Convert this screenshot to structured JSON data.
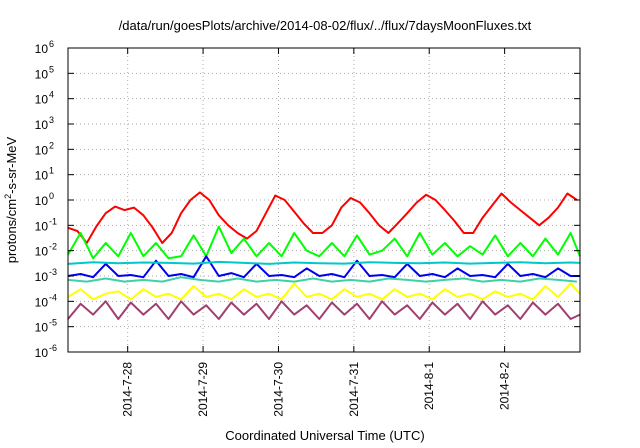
{
  "chart_data": {
    "type": "line",
    "title": "/data/run/goesPlots/archive/2014-08-02/flux/../flux/7daysMoonFluxes.txt",
    "xlabel": "Coordinated Universal Time (UTC)",
    "ylabel": {
      "base": "protons/cm",
      "sup": "2",
      "rest": "-s-sr-MeV"
    },
    "yscale": "log",
    "ylim": [
      1e-06,
      1000000.0
    ],
    "yticks": [
      {
        "exp": "-6"
      },
      {
        "exp": "-5"
      },
      {
        "exp": "-4"
      },
      {
        "exp": "-3"
      },
      {
        "exp": "-2"
      },
      {
        "exp": "-1"
      },
      {
        "exp": "0"
      },
      {
        "exp": "1"
      },
      {
        "exp": "2"
      },
      {
        "exp": "3"
      },
      {
        "exp": "4"
      },
      {
        "exp": "5"
      },
      {
        "exp": "6"
      }
    ],
    "ytick_base": "10",
    "xlim": [
      "2014-07-27T05:00",
      "2014-08-03T00:00"
    ],
    "xticks": [
      {
        "label": "2014-7-28",
        "x": "2014-07-28T00:00"
      },
      {
        "label": "2014-7-29",
        "x": "2014-07-29T00:00"
      },
      {
        "label": "2014-7-30",
        "x": "2014-07-30T00:00"
      },
      {
        "label": "2014-7-31",
        "x": "2014-07-31T00:00"
      },
      {
        "label": "2014-8-1",
        "x": "2014-08-01T00:00"
      },
      {
        "label": "2014-8-2",
        "x": "2014-08-02T00:00"
      }
    ],
    "grid": true,
    "series": [
      {
        "color": "#ff0000",
        "x": [
          "2014-07-27T05:00",
          "2014-07-27T08:00",
          "2014-07-27T11:00",
          "2014-07-27T14:00",
          "2014-07-27T17:00",
          "2014-07-27T20:00",
          "2014-07-27T23:00",
          "2014-07-28T02:00",
          "2014-07-28T05:00",
          "2014-07-28T08:00",
          "2014-07-28T11:00",
          "2014-07-28T14:00",
          "2014-07-28T17:00",
          "2014-07-28T20:00",
          "2014-07-28T23:00",
          "2014-07-29T02:00",
          "2014-07-29T05:00",
          "2014-07-29T08:00",
          "2014-07-29T11:00",
          "2014-07-29T14:00",
          "2014-07-29T17:00",
          "2014-07-29T20:00",
          "2014-07-29T23:00",
          "2014-07-30T02:00",
          "2014-07-30T05:00",
          "2014-07-30T08:00",
          "2014-07-30T11:00",
          "2014-07-30T14:00",
          "2014-07-30T17:00",
          "2014-07-30T20:00",
          "2014-07-30T23:00",
          "2014-07-31T02:00",
          "2014-07-31T05:00",
          "2014-07-31T08:00",
          "2014-07-31T11:00",
          "2014-07-31T14:00",
          "2014-07-31T17:00",
          "2014-07-31T20:00",
          "2014-07-31T23:00",
          "2014-08-01T02:00",
          "2014-08-01T05:00",
          "2014-08-01T08:00",
          "2014-08-01T11:00",
          "2014-08-01T14:00",
          "2014-08-01T17:00",
          "2014-08-01T20:00",
          "2014-08-01T23:00",
          "2014-08-02T02:00",
          "2014-08-02T05:00",
          "2014-08-02T08:00",
          "2014-08-02T11:00",
          "2014-08-02T14:00",
          "2014-08-02T17:00",
          "2014-08-02T20:00",
          "2014-08-02T23:00"
        ],
        "values": [
          0.08,
          0.06,
          0.02,
          0.09,
          0.3,
          0.55,
          0.4,
          0.5,
          0.25,
          0.08,
          0.02,
          0.05,
          0.3,
          1.0,
          2.0,
          1.0,
          0.25,
          0.1,
          0.05,
          0.03,
          0.06,
          0.3,
          1.5,
          1.0,
          0.35,
          0.12,
          0.05,
          0.05,
          0.1,
          0.5,
          1.2,
          0.8,
          0.3,
          0.1,
          0.05,
          0.12,
          0.3,
          0.8,
          1.6,
          1.0,
          0.4,
          0.15,
          0.05,
          0.05,
          0.2,
          0.6,
          1.8,
          0.8,
          0.4,
          0.2,
          0.1,
          0.2,
          0.5,
          1.8,
          1.0
        ]
      },
      {
        "color": "#00ff00",
        "x": [
          "2014-07-27T05:00",
          "2014-07-27T09:00",
          "2014-07-27T13:00",
          "2014-07-27T17:00",
          "2014-07-27T21:00",
          "2014-07-28T01:00",
          "2014-07-28T05:00",
          "2014-07-28T09:00",
          "2014-07-28T13:00",
          "2014-07-28T17:00",
          "2014-07-28T21:00",
          "2014-07-29T01:00",
          "2014-07-29T05:00",
          "2014-07-29T09:00",
          "2014-07-29T13:00",
          "2014-07-29T17:00",
          "2014-07-29T21:00",
          "2014-07-30T01:00",
          "2014-07-30T05:00",
          "2014-07-30T09:00",
          "2014-07-30T13:00",
          "2014-07-30T17:00",
          "2014-07-30T21:00",
          "2014-07-31T01:00",
          "2014-07-31T05:00",
          "2014-07-31T09:00",
          "2014-07-31T13:00",
          "2014-07-31T17:00",
          "2014-07-31T21:00",
          "2014-08-01T01:00",
          "2014-08-01T05:00",
          "2014-08-01T09:00",
          "2014-08-01T13:00",
          "2014-08-01T17:00",
          "2014-08-01T21:00",
          "2014-08-02T01:00",
          "2014-08-02T05:00",
          "2014-08-02T09:00",
          "2014-08-02T13:00",
          "2014-08-02T17:00",
          "2014-08-02T21:00",
          "2014-08-03T00:00"
        ],
        "values": [
          0.007,
          0.05,
          0.005,
          0.02,
          0.006,
          0.05,
          0.006,
          0.02,
          0.005,
          0.006,
          0.04,
          0.006,
          0.09,
          0.008,
          0.03,
          0.006,
          0.02,
          0.006,
          0.05,
          0.01,
          0.006,
          0.02,
          0.006,
          0.04,
          0.007,
          0.01,
          0.03,
          0.006,
          0.05,
          0.007,
          0.02,
          0.006,
          0.015,
          0.007,
          0.04,
          0.006,
          0.02,
          0.006,
          0.03,
          0.007,
          0.05,
          0.006
        ]
      },
      {
        "color": "#0000ee",
        "x": [
          "2014-07-27T05:00",
          "2014-07-27T09:00",
          "2014-07-27T13:00",
          "2014-07-27T17:00",
          "2014-07-27T21:00",
          "2014-07-28T01:00",
          "2014-07-28T05:00",
          "2014-07-28T09:00",
          "2014-07-28T13:00",
          "2014-07-28T17:00",
          "2014-07-28T21:00",
          "2014-07-29T01:00",
          "2014-07-29T05:00",
          "2014-07-29T09:00",
          "2014-07-29T13:00",
          "2014-07-29T17:00",
          "2014-07-29T21:00",
          "2014-07-30T01:00",
          "2014-07-30T05:00",
          "2014-07-30T09:00",
          "2014-07-30T13:00",
          "2014-07-30T17:00",
          "2014-07-30T21:00",
          "2014-07-31T01:00",
          "2014-07-31T05:00",
          "2014-07-31T09:00",
          "2014-07-31T13:00",
          "2014-07-31T17:00",
          "2014-07-31T21:00",
          "2014-08-01T01:00",
          "2014-08-01T05:00",
          "2014-08-01T09:00",
          "2014-08-01T13:00",
          "2014-08-01T17:00",
          "2014-08-01T21:00",
          "2014-08-02T01:00",
          "2014-08-02T05:00",
          "2014-08-02T09:00",
          "2014-08-02T13:00",
          "2014-08-02T17:00",
          "2014-08-02T21:00",
          "2014-08-03T00:00"
        ],
        "values": [
          0.001,
          0.0012,
          0.0009,
          0.003,
          0.001,
          0.0011,
          0.0009,
          0.004,
          0.001,
          0.0012,
          0.0009,
          0.006,
          0.001,
          0.0013,
          0.0009,
          0.003,
          0.001,
          0.0011,
          0.0009,
          0.002,
          0.001,
          0.0012,
          0.0009,
          0.004,
          0.001,
          0.0011,
          0.0009,
          0.003,
          0.001,
          0.0012,
          0.0009,
          0.002,
          0.001,
          0.0011,
          0.0009,
          0.003,
          0.001,
          0.0012,
          0.0009,
          0.002,
          0.001,
          0.001
        ]
      },
      {
        "color": "#00c8c8",
        "x": [
          "2014-07-27T05:00",
          "2014-07-27T13:00",
          "2014-07-27T21:00",
          "2014-07-28T05:00",
          "2014-07-28T13:00",
          "2014-07-28T21:00",
          "2014-07-29T05:00",
          "2014-07-29T13:00",
          "2014-07-29T21:00",
          "2014-07-30T05:00",
          "2014-07-30T13:00",
          "2014-07-30T21:00",
          "2014-07-31T05:00",
          "2014-07-31T13:00",
          "2014-07-31T21:00",
          "2014-08-01T05:00",
          "2014-08-01T13:00",
          "2014-08-01T21:00",
          "2014-08-02T05:00",
          "2014-08-02T13:00",
          "2014-08-02T21:00",
          "2014-08-03T00:00"
        ],
        "values": [
          0.003,
          0.0035,
          0.0032,
          0.0034,
          0.0033,
          0.0031,
          0.0036,
          0.0033,
          0.003,
          0.0034,
          0.0032,
          0.0031,
          0.0035,
          0.0033,
          0.0032,
          0.0034,
          0.0031,
          0.0033,
          0.0035,
          0.0032,
          0.0034,
          0.0033
        ]
      },
      {
        "color": "#40d0a8",
        "x": [
          "2014-07-27T05:00",
          "2014-07-27T11:00",
          "2014-07-27T17:00",
          "2014-07-27T23:00",
          "2014-07-28T05:00",
          "2014-07-28T11:00",
          "2014-07-28T17:00",
          "2014-07-28T23:00",
          "2014-07-29T05:00",
          "2014-07-29T11:00",
          "2014-07-29T17:00",
          "2014-07-29T23:00",
          "2014-07-30T05:00",
          "2014-07-30T11:00",
          "2014-07-30T17:00",
          "2014-07-30T23:00",
          "2014-07-31T05:00",
          "2014-07-31T11:00",
          "2014-07-31T17:00",
          "2014-07-31T23:00",
          "2014-08-01T05:00",
          "2014-08-01T11:00",
          "2014-08-01T17:00",
          "2014-08-01T23:00",
          "2014-08-02T05:00",
          "2014-08-02T11:00",
          "2014-08-02T17:00",
          "2014-08-02T23:00"
        ],
        "values": [
          0.0007,
          0.0006,
          0.0008,
          0.0006,
          0.0007,
          0.0006,
          0.0009,
          0.0007,
          0.0006,
          0.0008,
          0.0006,
          0.0007,
          0.0006,
          0.0008,
          0.0006,
          0.0007,
          0.0006,
          0.0008,
          0.0007,
          0.0006,
          0.0007,
          0.0008,
          0.0006,
          0.0007,
          0.0006,
          0.0008,
          0.0007,
          0.0006
        ]
      },
      {
        "color": "#ffff00",
        "x": [
          "2014-07-27T05:00",
          "2014-07-27T09:00",
          "2014-07-27T13:00",
          "2014-07-27T17:00",
          "2014-07-27T21:00",
          "2014-07-28T01:00",
          "2014-07-28T05:00",
          "2014-07-28T09:00",
          "2014-07-28T13:00",
          "2014-07-28T17:00",
          "2014-07-28T21:00",
          "2014-07-29T01:00",
          "2014-07-29T05:00",
          "2014-07-29T09:00",
          "2014-07-29T13:00",
          "2014-07-29T17:00",
          "2014-07-29T21:00",
          "2014-07-30T01:00",
          "2014-07-30T05:00",
          "2014-07-30T09:00",
          "2014-07-30T13:00",
          "2014-07-30T17:00",
          "2014-07-30T21:00",
          "2014-07-31T01:00",
          "2014-07-31T05:00",
          "2014-07-31T09:00",
          "2014-07-31T13:00",
          "2014-07-31T17:00",
          "2014-07-31T21:00",
          "2014-08-01T01:00",
          "2014-08-01T05:00",
          "2014-08-01T09:00",
          "2014-08-01T13:00",
          "2014-08-01T17:00",
          "2014-08-01T21:00",
          "2014-08-02T01:00",
          "2014-08-02T05:00",
          "2014-08-02T09:00",
          "2014-08-02T13:00",
          "2014-08-02T17:00",
          "2014-08-02T21:00",
          "2014-08-03T00:00"
        ],
        "values": [
          0.00015,
          0.0003,
          0.00012,
          0.0002,
          0.00025,
          0.00012,
          0.0003,
          0.00015,
          0.0002,
          0.00012,
          0.0004,
          0.00015,
          0.0002,
          0.00012,
          0.0003,
          0.00015,
          0.0002,
          0.00012,
          0.0005,
          0.00015,
          0.0002,
          0.00012,
          0.0003,
          0.00015,
          0.0002,
          0.00012,
          0.0003,
          0.00015,
          0.0002,
          0.00012,
          0.0003,
          0.00015,
          0.0002,
          0.00012,
          0.00025,
          0.00015,
          0.0002,
          0.00012,
          0.0004,
          0.00015,
          0.0005,
          0.0002
        ]
      },
      {
        "color": "#a04070",
        "x": [
          "2014-07-27T05:00",
          "2014-07-27T09:00",
          "2014-07-27T13:00",
          "2014-07-27T17:00",
          "2014-07-27T21:00",
          "2014-07-28T01:00",
          "2014-07-28T05:00",
          "2014-07-28T09:00",
          "2014-07-28T13:00",
          "2014-07-28T17:00",
          "2014-07-28T21:00",
          "2014-07-29T01:00",
          "2014-07-29T05:00",
          "2014-07-29T09:00",
          "2014-07-29T13:00",
          "2014-07-29T17:00",
          "2014-07-29T21:00",
          "2014-07-30T01:00",
          "2014-07-30T05:00",
          "2014-07-30T09:00",
          "2014-07-30T13:00",
          "2014-07-30T17:00",
          "2014-07-30T21:00",
          "2014-07-31T01:00",
          "2014-07-31T05:00",
          "2014-07-31T09:00",
          "2014-07-31T13:00",
          "2014-07-31T17:00",
          "2014-07-31T21:00",
          "2014-08-01T01:00",
          "2014-08-01T05:00",
          "2014-08-01T09:00",
          "2014-08-01T13:00",
          "2014-08-01T17:00",
          "2014-08-01T21:00",
          "2014-08-02T01:00",
          "2014-08-02T05:00",
          "2014-08-02T09:00",
          "2014-08-02T13:00",
          "2014-08-02T17:00",
          "2014-08-02T21:00",
          "2014-08-03T00:00"
        ],
        "values": [
          2e-05,
          8e-05,
          3e-05,
          0.0001,
          2e-05,
          9e-05,
          3e-05,
          8e-05,
          2e-05,
          0.0001,
          3e-05,
          7e-05,
          2e-05,
          9e-05,
          3e-05,
          8e-05,
          2e-05,
          0.0001,
          3e-05,
          7e-05,
          2e-05,
          9e-05,
          3e-05,
          8e-05,
          2e-05,
          0.0001,
          3e-05,
          7e-05,
          2e-05,
          9e-05,
          3e-05,
          8e-05,
          2e-05,
          0.0001,
          3e-05,
          7e-05,
          2e-05,
          9e-05,
          3e-05,
          8e-05,
          2e-05,
          3e-05
        ]
      }
    ]
  }
}
